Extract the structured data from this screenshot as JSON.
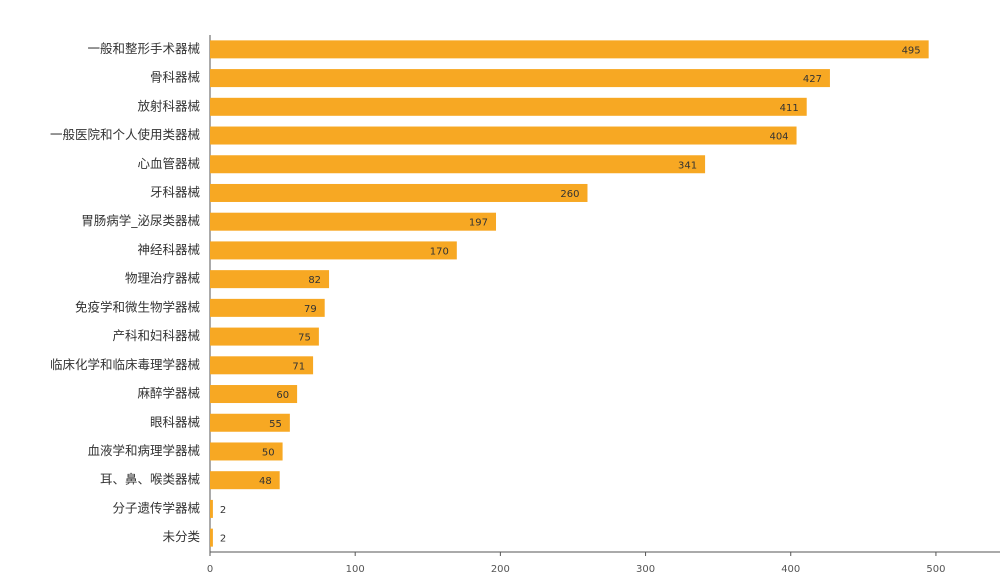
{
  "chart_data": {
    "type": "bar",
    "orientation": "horizontal",
    "categories": [
      "一般和整形手术器械",
      "骨科器械",
      "放射科器械",
      "一般医院和个人使用类器械",
      "心血管器械",
      "牙科器械",
      "胃肠病学_泌尿类器械",
      "神经科器械",
      "物理治疗器械",
      "免疫学和微生物学器械",
      "产科和妇科器械",
      "临床化学和临床毒理学器械",
      "麻醉学器械",
      "眼科器械",
      "血液学和病理学器械",
      "耳、鼻、喉类器械",
      "分子遗传学器械",
      "未分类"
    ],
    "values": [
      495,
      427,
      411,
      404,
      341,
      260,
      197,
      170,
      82,
      79,
      75,
      71,
      60,
      55,
      50,
      48,
      2,
      2
    ],
    "color": "#f7a823",
    "xlim": [
      0,
      540
    ],
    "xticks": [
      0,
      100,
      200,
      300,
      400,
      500
    ]
  }
}
